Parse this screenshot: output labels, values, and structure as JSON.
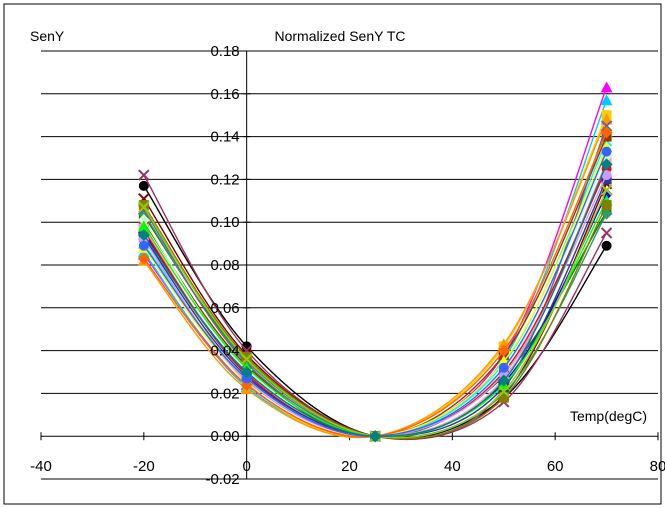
{
  "chart_data": {
    "type": "line",
    "title": "Normalized SenY TC",
    "ylabel": "SenY",
    "xlabel": "Temp(degC)",
    "xlim": [
      -40,
      80
    ],
    "ylim": [
      -0.02,
      0.18
    ],
    "x_ticks": [
      -40,
      -20,
      0,
      20,
      40,
      60,
      80
    ],
    "x_tick_labels": [
      "-40",
      "-20",
      "0",
      "20",
      "40",
      "60",
      "80"
    ],
    "y_ticks": [
      -0.02,
      0.0,
      0.02,
      0.04,
      0.06,
      0.08,
      0.1,
      0.12,
      0.14,
      0.16,
      0.18
    ],
    "y_tick_labels": [
      "-0.02",
      "0.00",
      "0.02",
      "0.04",
      "0.06",
      "0.08",
      "0.10",
      "0.12",
      "0.14",
      "0.16",
      "0.18"
    ],
    "grid": "horizontal",
    "legend": "none",
    "x": [
      -20,
      0,
      25,
      50,
      70
    ],
    "series": [
      {
        "color": "#000000",
        "marker": "circle",
        "values": [
          0.117,
          0.042,
          0.0,
          0.018,
          0.089
        ]
      },
      {
        "color": "#FF00FF",
        "marker": "triangle",
        "values": [
          0.085,
          0.024,
          0.0,
          0.038,
          0.163
        ]
      },
      {
        "color": "#993366",
        "marker": "x",
        "values": [
          0.122,
          0.04,
          0.0,
          0.016,
          0.095
        ]
      },
      {
        "color": "#00CCFF",
        "marker": "triangle",
        "values": [
          0.086,
          0.023,
          0.0,
          0.036,
          0.157
        ]
      },
      {
        "color": "#800000",
        "marker": "x",
        "values": [
          0.111,
          0.038,
          0.0,
          0.019,
          0.118
        ]
      },
      {
        "color": "#008000",
        "marker": "circle",
        "values": [
          0.103,
          0.036,
          0.0,
          0.028,
          0.105
        ]
      },
      {
        "color": "#0000FF",
        "marker": "diamond",
        "values": [
          0.095,
          0.03,
          0.0,
          0.025,
          0.113
        ]
      },
      {
        "color": "#FFCC00",
        "marker": "square",
        "values": [
          0.099,
          0.025,
          0.0,
          0.042,
          0.15
        ]
      },
      {
        "color": "#FF9900",
        "marker": "triangle",
        "values": [
          0.082,
          0.022,
          0.0,
          0.043,
          0.148
        ]
      },
      {
        "color": "#00FFFF",
        "marker": "x",
        "values": [
          0.09,
          0.027,
          0.0,
          0.034,
          0.138
        ]
      },
      {
        "color": "#993300",
        "marker": "square",
        "values": [
          0.1,
          0.033,
          0.0,
          0.038,
          0.14
        ]
      },
      {
        "color": "#FF99CC",
        "marker": "square",
        "values": [
          0.097,
          0.029,
          0.0,
          0.027,
          0.128
        ]
      },
      {
        "color": "#339966",
        "marker": "diamond",
        "values": [
          0.104,
          0.035,
          0.0,
          0.02,
          0.104
        ]
      },
      {
        "color": "#CCFFCC",
        "marker": "diamond",
        "values": [
          0.101,
          0.031,
          0.0,
          0.031,
          0.131
        ]
      },
      {
        "color": "#666699",
        "marker": "x",
        "values": [
          0.106,
          0.034,
          0.0,
          0.022,
          0.145
        ]
      },
      {
        "color": "#FF0000",
        "marker": "circle",
        "values": [
          0.096,
          0.029,
          0.0,
          0.03,
          0.125
        ]
      },
      {
        "color": "#333399",
        "marker": "square",
        "values": [
          0.093,
          0.028,
          0.0,
          0.023,
          0.12
        ]
      },
      {
        "color": "#FFFF00",
        "marker": "triangle",
        "values": [
          0.088,
          0.026,
          0.0,
          0.035,
          0.135
        ]
      },
      {
        "color": "#00FF00",
        "marker": "triangle",
        "values": [
          0.098,
          0.032,
          0.0,
          0.024,
          0.11
        ]
      },
      {
        "color": "#CC99FF",
        "marker": "circle",
        "values": [
          0.092,
          0.026,
          0.0,
          0.029,
          0.122
        ]
      },
      {
        "color": "#FF6600",
        "marker": "diamond",
        "values": [
          0.083,
          0.024,
          0.0,
          0.04,
          0.142
        ]
      },
      {
        "color": "#808000",
        "marker": "square",
        "values": [
          0.108,
          0.037,
          0.0,
          0.018,
          0.108
        ]
      },
      {
        "color": "#3366FF",
        "marker": "circle",
        "values": [
          0.089,
          0.027,
          0.0,
          0.032,
          0.133
        ]
      },
      {
        "color": "#99CC00",
        "marker": "x",
        "values": [
          0.107,
          0.036,
          0.0,
          0.021,
          0.115
        ]
      },
      {
        "color": "#008080",
        "marker": "diamond",
        "values": [
          0.094,
          0.03,
          0.0,
          0.026,
          0.127
        ]
      }
    ]
  }
}
